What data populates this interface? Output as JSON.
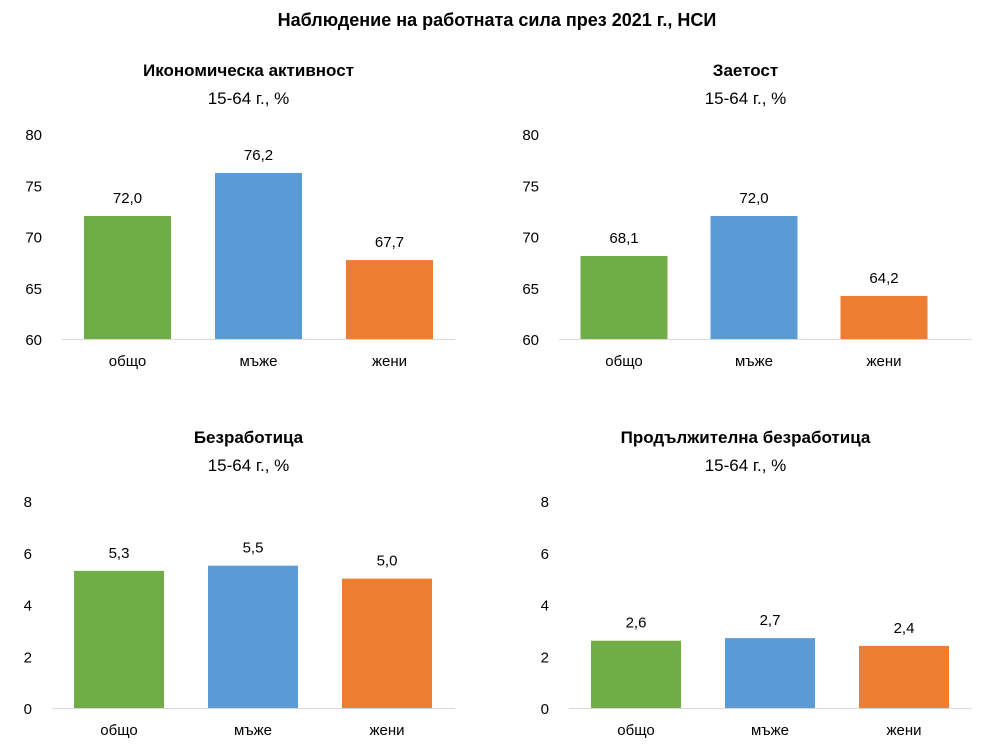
{
  "title": "Наблюдение на работната сила през 2021 г., НСИ",
  "colors": {
    "общо": "#70AD47",
    "мъже": "#5B9BD5",
    "жени": "#ED7D31"
  },
  "chart_data": [
    {
      "type": "bar",
      "title": "Икономическа активност",
      "subtitle": "15-64 г., %",
      "categories": [
        "общо",
        "мъже",
        "жени"
      ],
      "values": [
        72.0,
        76.2,
        67.7
      ],
      "value_labels": [
        "72,0",
        "76,2",
        "67,7"
      ],
      "ylim": [
        60,
        80
      ],
      "yticks": [
        60,
        65,
        70,
        75,
        80
      ],
      "grid": false,
      "legend": "none"
    },
    {
      "type": "bar",
      "title": "Заетост",
      "subtitle": "15-64 г., %",
      "categories": [
        "общо",
        "мъже",
        "жени"
      ],
      "values": [
        68.1,
        72.0,
        64.2
      ],
      "value_labels": [
        "68,1",
        "72,0",
        "64,2"
      ],
      "ylim": [
        60,
        80
      ],
      "yticks": [
        60,
        65,
        70,
        75,
        80
      ],
      "grid": false,
      "legend": "none"
    },
    {
      "type": "bar",
      "title": "Безработица",
      "subtitle": "15-64 г., %",
      "categories": [
        "общо",
        "мъже",
        "жени"
      ],
      "values": [
        5.3,
        5.5,
        5.0
      ],
      "value_labels": [
        "5,3",
        "5,5",
        "5,0"
      ],
      "ylim": [
        0,
        8
      ],
      "yticks": [
        0,
        2,
        4,
        6,
        8
      ],
      "grid": false,
      "legend": "none"
    },
    {
      "type": "bar",
      "title": "Продължителна безработица",
      "subtitle": "15-64 г., %",
      "categories": [
        "общо",
        "мъже",
        "жени"
      ],
      "values": [
        2.6,
        2.7,
        2.4
      ],
      "value_labels": [
        "2,6",
        "2,7",
        "2,4"
      ],
      "ylim": [
        0,
        8
      ],
      "yticks": [
        0,
        2,
        4,
        6,
        8
      ],
      "grid": false,
      "legend": "none"
    }
  ]
}
